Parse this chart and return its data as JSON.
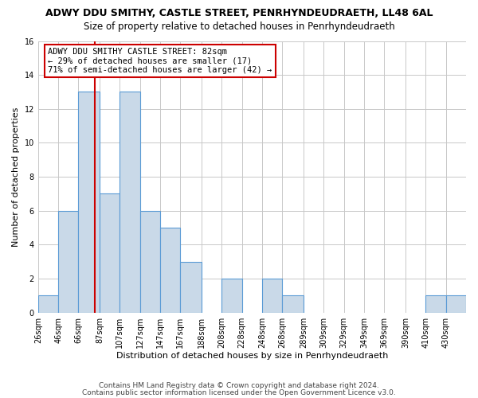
{
  "title": "ADWY DDU SMITHY, CASTLE STREET, PENRHYNDEUDRAETH, LL48 6AL",
  "subtitle": "Size of property relative to detached houses in Penrhyndeudraeth",
  "xlabel": "Distribution of detached houses by size in Penrhyndeudraeth",
  "ylabel": "Number of detached properties",
  "bin_labels": [
    "26sqm",
    "46sqm",
    "66sqm",
    "87sqm",
    "107sqm",
    "127sqm",
    "147sqm",
    "167sqm",
    "188sqm",
    "208sqm",
    "228sqm",
    "248sqm",
    "268sqm",
    "289sqm",
    "309sqm",
    "329sqm",
    "349sqm",
    "369sqm",
    "390sqm",
    "410sqm",
    "430sqm"
  ],
  "bin_edges": [
    26,
    46,
    66,
    87,
    107,
    127,
    147,
    167,
    188,
    208,
    228,
    248,
    268,
    289,
    309,
    329,
    349,
    369,
    390,
    410,
    430,
    450
  ],
  "counts": [
    1,
    6,
    13,
    7,
    13,
    6,
    5,
    3,
    0,
    2,
    0,
    2,
    1,
    0,
    0,
    0,
    0,
    0,
    0,
    1,
    1
  ],
  "bar_color": "#c9d9e8",
  "bar_edge_color": "#5b9bd5",
  "marker_value": 82,
  "marker_color": "#cc0000",
  "annotation_line1": "ADWY DDU SMITHY CASTLE STREET: 82sqm",
  "annotation_line2": "← 29% of detached houses are smaller (17)",
  "annotation_line3": "71% of semi-detached houses are larger (42) →",
  "annotation_box_color": "#ffffff",
  "annotation_box_edge_color": "#cc0000",
  "ylim": [
    0,
    16
  ],
  "yticks": [
    0,
    2,
    4,
    6,
    8,
    10,
    12,
    14,
    16
  ],
  "footnote1": "Contains HM Land Registry data © Crown copyright and database right 2024.",
  "footnote2": "Contains public sector information licensed under the Open Government Licence v3.0.",
  "background_color": "#ffffff",
  "grid_color": "#c8c8c8",
  "title_fontsize": 9,
  "subtitle_fontsize": 8.5,
  "axis_label_fontsize": 8,
  "tick_fontsize": 7,
  "annotation_fontsize": 7.5,
  "footnote_fontsize": 6.5
}
